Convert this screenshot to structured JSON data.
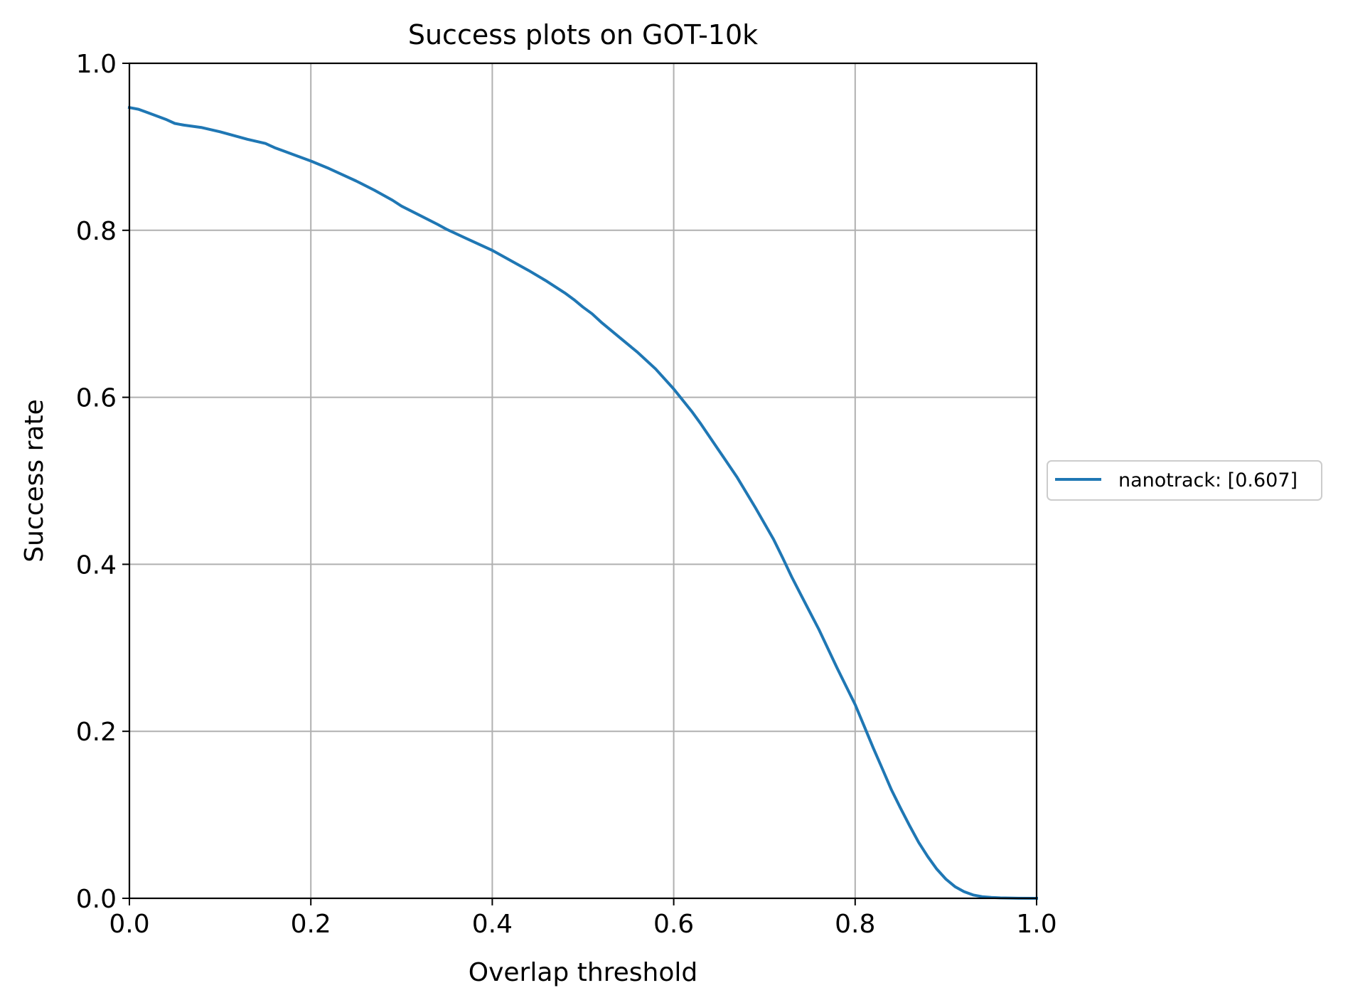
{
  "chart_data": {
    "type": "line",
    "title": "Success plots on GOT-10k",
    "xlabel": "Overlap threshold",
    "ylabel": "Success rate",
    "xlim": [
      0,
      1
    ],
    "ylim": [
      0,
      1
    ],
    "xticks": [
      "0.0",
      "0.2",
      "0.4",
      "0.6",
      "0.8",
      "1.0"
    ],
    "yticks": [
      "0.0",
      "0.2",
      "0.4",
      "0.6",
      "0.8",
      "1.0"
    ],
    "grid": true,
    "legend_position": "right",
    "series": [
      {
        "name": "nanotrack: [0.607]",
        "color": "#1f77b4",
        "x": [
          0.0,
          0.01,
          0.02,
          0.03,
          0.04,
          0.05,
          0.06,
          0.08,
          0.1,
          0.11,
          0.13,
          0.15,
          0.16,
          0.17,
          0.18,
          0.2,
          0.22,
          0.23,
          0.25,
          0.27,
          0.29,
          0.3,
          0.32,
          0.34,
          0.35,
          0.37,
          0.4,
          0.42,
          0.44,
          0.46,
          0.48,
          0.49,
          0.5,
          0.51,
          0.52,
          0.54,
          0.56,
          0.58,
          0.6,
          0.62,
          0.63,
          0.65,
          0.67,
          0.69,
          0.71,
          0.72,
          0.73,
          0.74,
          0.76,
          0.78,
          0.8,
          0.81,
          0.82,
          0.83,
          0.84,
          0.85,
          0.86,
          0.87,
          0.88,
          0.89,
          0.9,
          0.91,
          0.92,
          0.93,
          0.94,
          0.95,
          0.96,
          0.98,
          1.0
        ],
        "y": [
          0.947,
          0.945,
          0.941,
          0.937,
          0.933,
          0.928,
          0.926,
          0.923,
          0.918,
          0.915,
          0.909,
          0.904,
          0.899,
          0.895,
          0.891,
          0.883,
          0.874,
          0.869,
          0.859,
          0.848,
          0.836,
          0.829,
          0.818,
          0.807,
          0.801,
          0.791,
          0.776,
          0.764,
          0.752,
          0.739,
          0.725,
          0.717,
          0.708,
          0.7,
          0.69,
          0.672,
          0.654,
          0.634,
          0.61,
          0.583,
          0.568,
          0.536,
          0.504,
          0.468,
          0.43,
          0.408,
          0.385,
          0.364,
          0.322,
          0.276,
          0.232,
          0.206,
          0.18,
          0.155,
          0.13,
          0.108,
          0.087,
          0.067,
          0.05,
          0.035,
          0.023,
          0.014,
          0.008,
          0.004,
          0.002,
          0.001,
          0.0005,
          0.0001,
          0.0
        ]
      }
    ]
  }
}
